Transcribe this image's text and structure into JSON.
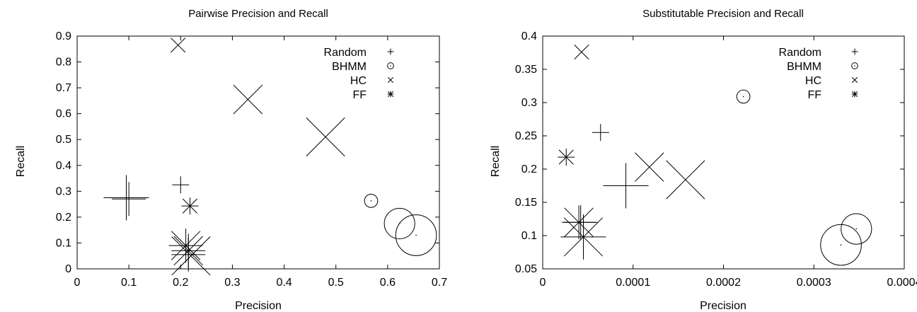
{
  "chart_data": [
    {
      "type": "scatter",
      "title": "Pairwise Precision and Recall",
      "xlabel": "Precision",
      "ylabel": "Recall",
      "xlim": [
        0,
        0.7
      ],
      "ylim": [
        0,
        0.9
      ],
      "xticks": [
        0,
        0.1,
        0.2,
        0.3,
        0.4,
        0.5,
        0.6,
        0.7
      ],
      "xtick_labels": [
        "0",
        "0.1",
        "0.2",
        "0.3",
        "0.4",
        "0.5",
        "0.6",
        "0.7"
      ],
      "yticks": [
        0,
        0.1,
        0.2,
        0.3,
        0.4,
        0.5,
        0.6,
        0.7,
        0.8,
        0.9
      ],
      "ytick_labels": [
        "0",
        "0.1",
        "0.2",
        "0.3",
        "0.4",
        "0.5",
        "0.6",
        "0.7",
        "0.8",
        "0.9"
      ],
      "legend_position": "top-right",
      "grid": false,
      "series": [
        {
          "name": "Random",
          "marker": "plus",
          "points": [
            {
              "x": 0.1,
              "y": 0.27,
              "size": 3
            },
            {
              "x": 0.095,
              "y": 0.275,
              "size": 4
            },
            {
              "x": 0.2,
              "y": 0.325,
              "size": 1.5
            },
            {
              "x": 0.215,
              "y": 0.055,
              "size": 3
            }
          ]
        },
        {
          "name": "BHMM",
          "marker": "circle",
          "points": [
            {
              "x": 0.568,
              "y": 0.263,
              "size": 1.3
            },
            {
              "x": 0.623,
              "y": 0.175,
              "size": 3
            },
            {
              "x": 0.655,
              "y": 0.13,
              "size": 4
            }
          ]
        },
        {
          "name": "HC",
          "marker": "cross",
          "points": [
            {
              "x": 0.195,
              "y": 0.865,
              "size": 1.5
            },
            {
              "x": 0.33,
              "y": 0.655,
              "size": 3
            },
            {
              "x": 0.48,
              "y": 0.51,
              "size": 4
            },
            {
              "x": 0.22,
              "y": 0.05,
              "size": 4
            }
          ]
        },
        {
          "name": "FF",
          "marker": "star",
          "points": [
            {
              "x": 0.218,
              "y": 0.243,
              "size": 1.5
            },
            {
              "x": 0.21,
              "y": 0.09,
              "size": 3
            },
            {
              "x": 0.215,
              "y": 0.07,
              "size": 3
            }
          ]
        }
      ]
    },
    {
      "type": "scatter",
      "title": "Substitutable Precision and Recall",
      "xlabel": "Precision",
      "ylabel": "Recall",
      "xlim": [
        0,
        0.0004
      ],
      "ylim": [
        0.05,
        0.4
      ],
      "xticks": [
        0,
        0.0001,
        0.0002,
        0.0003,
        0.0004
      ],
      "xtick_labels": [
        "0",
        "0.0001",
        "0.0002",
        "0.0003",
        "0.0004"
      ],
      "yticks": [
        0.05,
        0.1,
        0.15,
        0.2,
        0.25,
        0.3,
        0.35,
        0.4
      ],
      "ytick_labels": [
        "0.05",
        "0.1",
        "0.15",
        "0.2",
        "0.25",
        "0.3",
        "0.35",
        "0.4"
      ],
      "legend_position": "top-right",
      "grid": false,
      "series": [
        {
          "name": "Random",
          "marker": "plus",
          "points": [
            {
              "x": 6.4e-05,
              "y": 0.255,
              "size": 1.5
            },
            {
              "x": 9.2e-05,
              "y": 0.175,
              "size": 4
            },
            {
              "x": 4.2e-05,
              "y": 0.12,
              "size": 3
            }
          ]
        },
        {
          "name": "BHMM",
          "marker": "circle",
          "points": [
            {
              "x": 0.000222,
              "y": 0.309,
              "size": 1.3
            },
            {
              "x": 0.000347,
              "y": 0.11,
              "size": 3
            },
            {
              "x": 0.00033,
              "y": 0.086,
              "size": 4
            }
          ]
        },
        {
          "name": "HC",
          "marker": "cross",
          "points": [
            {
              "x": 4.3e-05,
              "y": 0.376,
              "size": 1.5
            },
            {
              "x": 0.000118,
              "y": 0.203,
              "size": 3
            },
            {
              "x": 0.000158,
              "y": 0.184,
              "size": 4
            }
          ]
        },
        {
          "name": "FF",
          "marker": "star",
          "points": [
            {
              "x": 2.6e-05,
              "y": 0.218,
              "size": 1.5
            },
            {
              "x": 4e-05,
              "y": 0.12,
              "size": 3
            },
            {
              "x": 4.5e-05,
              "y": 0.098,
              "size": 4
            }
          ]
        }
      ]
    }
  ]
}
